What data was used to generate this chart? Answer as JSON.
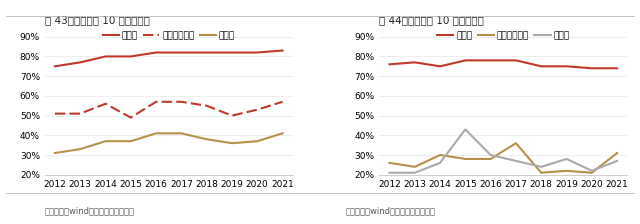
{
  "years": [
    2012,
    2013,
    2014,
    2015,
    2016,
    2017,
    2018,
    2019,
    2020,
    2021
  ],
  "chart1": {
    "title": "图 43：基恩士近 10 年盈利情况",
    "gross_margin": [
      75,
      77,
      80,
      80,
      82,
      82,
      82,
      82,
      82,
      83
    ],
    "pretax_net_margin": [
      51,
      51,
      56,
      49,
      57,
      57,
      55,
      50,
      53,
      57
    ],
    "net_margin": [
      31,
      33,
      37,
      37,
      41,
      41,
      38,
      36,
      37,
      41
    ],
    "legend": [
      "毛利率",
      "总税前净利率",
      "净利率"
    ],
    "gross_color": "#c0392b",
    "pretax_color": "#c0392b",
    "net_color": "#b5914a",
    "ylim": [
      20,
      95
    ],
    "yticks": [
      20,
      30,
      40,
      50,
      60,
      70,
      80,
      90
    ]
  },
  "chart2": {
    "title": "图 44：康耕视近 10 年盈利情况",
    "gross_margin": [
      76,
      77,
      75,
      78,
      78,
      78,
      75,
      75,
      74,
      74
    ],
    "pretax_net_margin": [
      26,
      24,
      30,
      28,
      28,
      36,
      21,
      22,
      21,
      31
    ],
    "net_margin": [
      21,
      21,
      26,
      43,
      30,
      27,
      24,
      28,
      22,
      27
    ],
    "legend": [
      "毛利率",
      "总税前净利率",
      "净利率"
    ],
    "gross_color": "#c0392b",
    "pretax_color": "#b5914a",
    "net_color": "#aaaaaa",
    "ylim": [
      20,
      95
    ],
    "yticks": [
      20,
      30,
      40,
      50,
      60,
      70,
      80,
      90
    ]
  },
  "source_text": "资料来源：wind，西部证基研发中心",
  "background_color": "#ffffff",
  "line_width": 1.5,
  "font_size_title": 7.5,
  "font_size_tick": 6.5,
  "font_size_legend": 6.5,
  "font_size_source": 6
}
